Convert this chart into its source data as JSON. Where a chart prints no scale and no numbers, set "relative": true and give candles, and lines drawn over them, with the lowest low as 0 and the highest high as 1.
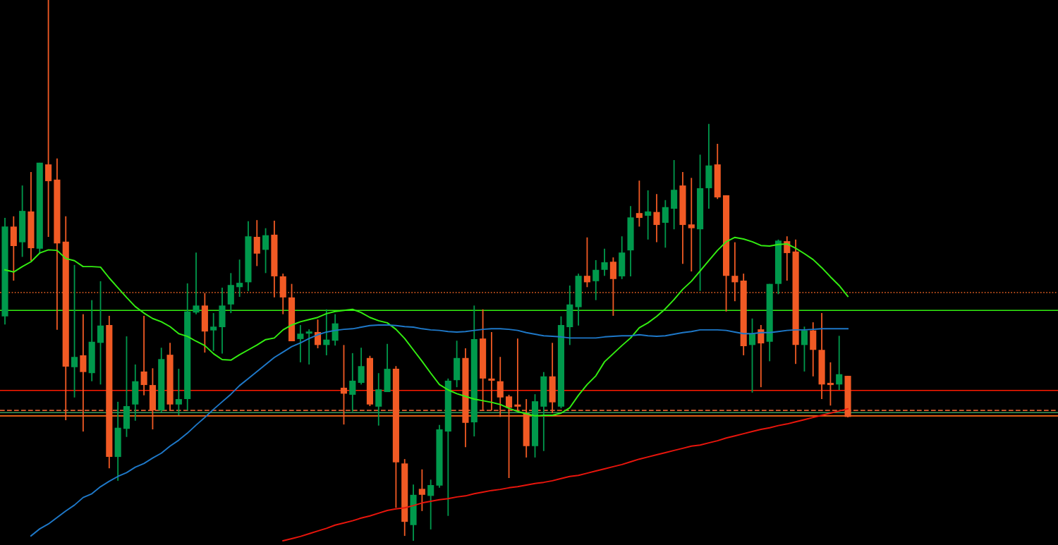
{
  "chart_data": {
    "type": "candlestick",
    "relative": true,
    "grid": false,
    "categories": [
      null,
      null,
      null,
      null,
      null,
      null,
      null,
      null,
      null,
      null,
      null,
      null,
      null,
      null,
      null,
      null,
      null,
      null,
      null,
      null,
      null,
      null,
      null,
      null,
      null,
      null,
      null,
      null,
      null,
      null,
      null,
      null,
      null,
      null,
      null,
      null,
      null,
      null,
      null,
      null,
      null,
      null,
      null,
      null,
      null,
      null,
      null,
      null,
      null,
      null,
      null,
      null,
      null,
      null,
      null,
      null,
      null,
      null,
      null,
      null,
      null,
      null,
      null,
      null,
      null,
      null,
      null,
      null,
      null,
      null,
      null,
      null,
      null,
      null,
      null,
      null,
      null,
      null,
      null,
      null,
      null,
      null,
      null,
      null,
      null,
      null,
      null,
      null,
      null,
      null,
      null,
      null,
      null,
      null,
      null,
      null,
      null,
      null
    ],
    "ohlc": [
      [
        0.415,
        0.597,
        0.4,
        0.581
      ],
      [
        0.581,
        0.6,
        0.481,
        0.545
      ],
      [
        0.552,
        0.657,
        0.525,
        0.61
      ],
      [
        0.609,
        0.682,
        0.518,
        0.541
      ],
      [
        0.54,
        0.699,
        0.531,
        0.699
      ],
      [
        0.696,
        1.0,
        0.562,
        0.665
      ],
      [
        0.668,
        0.707,
        0.39,
        0.55
      ],
      [
        0.553,
        0.6,
        0.223,
        0.322
      ],
      [
        0.321,
        0.51,
        0.265,
        0.34
      ],
      [
        0.343,
        0.419,
        0.202,
        0.312
      ],
      [
        0.31,
        0.445,
        0.295,
        0.368
      ],
      [
        0.366,
        0.48,
        0.289,
        0.398
      ],
      [
        0.399,
        0.416,
        0.134,
        0.155
      ],
      [
        0.155,
        0.257,
        0.111,
        0.209
      ],
      [
        0.207,
        0.378,
        0.192,
        0.249
      ],
      [
        0.252,
        0.326,
        0.222,
        0.295
      ],
      [
        0.313,
        0.416,
        0.269,
        0.288
      ],
      [
        0.288,
        0.319,
        0.206,
        0.241
      ],
      [
        0.241,
        0.357,
        0.237,
        0.336
      ],
      [
        0.344,
        0.366,
        0.241,
        0.252
      ],
      [
        0.252,
        0.318,
        0.232,
        0.262
      ],
      [
        0.262,
        0.476,
        0.241,
        0.424
      ],
      [
        0.422,
        0.533,
        0.419,
        0.435
      ],
      [
        0.435,
        0.458,
        0.348,
        0.387
      ],
      [
        0.389,
        0.421,
        0.351,
        0.396
      ],
      [
        0.395,
        0.468,
        0.346,
        0.435
      ],
      [
        0.437,
        0.495,
        0.421,
        0.473
      ],
      [
        0.469,
        0.52,
        0.451,
        0.477
      ],
      [
        0.478,
        0.591,
        0.462,
        0.563
      ],
      [
        0.562,
        0.593,
        0.508,
        0.531
      ],
      [
        0.538,
        0.578,
        0.495,
        0.565
      ],
      [
        0.566,
        0.592,
        0.45,
        0.489
      ],
      [
        0.489,
        0.494,
        0.419,
        0.45
      ],
      [
        0.45,
        0.475,
        0.369,
        0.369
      ],
      [
        0.373,
        0.399,
        0.33,
        0.383
      ],
      [
        0.383,
        0.391,
        0.326,
        0.387
      ],
      [
        0.386,
        0.409,
        0.356,
        0.362
      ],
      [
        0.362,
        0.428,
        0.343,
        0.372
      ],
      [
        0.37,
        0.419,
        0.361,
        0.402
      ],
      [
        0.283,
        0.362,
        0.215,
        0.272
      ],
      [
        0.27,
        0.347,
        0.239,
        0.296
      ],
      [
        0.292,
        0.357,
        0.289,
        0.323
      ],
      [
        0.338,
        0.342,
        0.249,
        0.252
      ],
      [
        0.248,
        0.31,
        0.213,
        0.28
      ],
      [
        0.275,
        0.364,
        0.275,
        0.318
      ],
      [
        0.318,
        0.323,
        0.061,
        0.145
      ],
      [
        0.143,
        0.151,
        0.009,
        0.035
      ],
      [
        0.029,
        0.104,
        0.0,
        0.085
      ],
      [
        0.096,
        0.132,
        0.055,
        0.085
      ],
      [
        0.083,
        0.113,
        0.021,
        0.103
      ],
      [
        0.102,
        0.214,
        0.098,
        0.206
      ],
      [
        0.202,
        0.3,
        0.046,
        0.296
      ],
      [
        0.297,
        0.37,
        0.284,
        0.338
      ],
      [
        0.338,
        0.356,
        0.173,
        0.218
      ],
      [
        0.219,
        0.435,
        0.193,
        0.373
      ],
      [
        0.374,
        0.428,
        0.241,
        0.3
      ],
      [
        0.3,
        0.386,
        0.241,
        0.296
      ],
      [
        0.295,
        0.34,
        0.229,
        0.265
      ],
      [
        0.267,
        0.27,
        0.116,
        0.246
      ],
      [
        0.252,
        0.374,
        0.239,
        0.248
      ],
      [
        0.236,
        0.262,
        0.154,
        0.175
      ],
      [
        0.175,
        0.271,
        0.154,
        0.258
      ],
      [
        0.248,
        0.312,
        0.166,
        0.304
      ],
      [
        0.304,
        0.366,
        0.236,
        0.256
      ],
      [
        0.248,
        0.415,
        0.245,
        0.399
      ],
      [
        0.395,
        0.472,
        0.362,
        0.437
      ],
      [
        0.432,
        0.494,
        0.398,
        0.49
      ],
      [
        0.49,
        0.561,
        0.469,
        0.478
      ],
      [
        0.48,
        0.519,
        0.445,
        0.501
      ],
      [
        0.501,
        0.54,
        0.49,
        0.515
      ],
      [
        0.516,
        0.524,
        0.416,
        0.484
      ],
      [
        0.489,
        0.563,
        0.484,
        0.533
      ],
      [
        0.537,
        0.619,
        0.489,
        0.598
      ],
      [
        0.606,
        0.666,
        0.581,
        0.597
      ],
      [
        0.601,
        0.648,
        0.557,
        0.609
      ],
      [
        0.608,
        0.641,
        0.552,
        0.584
      ],
      [
        0.588,
        0.63,
        0.542,
        0.617
      ],
      [
        0.614,
        0.704,
        0.576,
        0.649
      ],
      [
        0.657,
        0.682,
        0.512,
        0.584
      ],
      [
        0.585,
        0.671,
        0.498,
        0.578
      ],
      [
        0.576,
        0.714,
        0.462,
        0.652
      ],
      [
        0.652,
        0.771,
        0.614,
        0.694
      ],
      [
        0.696,
        0.734,
        0.632,
        0.635
      ],
      [
        0.639,
        0.639,
        0.424,
        0.49
      ],
      [
        0.49,
        0.552,
        0.443,
        0.478
      ],
      [
        0.481,
        0.494,
        0.343,
        0.36
      ],
      [
        0.362,
        0.411,
        0.274,
        0.382
      ],
      [
        0.391,
        0.399,
        0.284,
        0.365
      ],
      [
        0.368,
        0.475,
        0.332,
        0.475
      ],
      [
        0.475,
        0.557,
        0.456,
        0.555
      ],
      [
        0.554,
        0.563,
        0.481,
        0.532
      ],
      [
        0.535,
        0.557,
        0.327,
        0.362
      ],
      [
        0.362,
        0.396,
        0.313,
        0.389
      ],
      [
        0.389,
        0.404,
        0.304,
        0.353
      ],
      [
        0.353,
        0.421,
        0.262,
        0.289
      ],
      [
        0.292,
        0.33,
        0.25,
        0.288
      ],
      [
        0.289,
        0.379,
        0.279,
        0.308
      ],
      [
        0.305,
        0.305,
        0.228,
        0.229
      ]
    ],
    "colors": [
      "#00994c",
      "#f15a24",
      "#00994c",
      "#f15a24",
      "#00994c",
      "#f15a24",
      "#f15a24",
      "#f15a24",
      "#00994c",
      "#f15a24",
      "#00994c",
      "#00994c",
      "#f15a24",
      "#00994c",
      "#00994c",
      "#00994c",
      "#f15a24",
      "#f15a24",
      "#00994c",
      "#f15a24",
      "#00994c",
      "#00994c",
      "#00994c",
      "#f15a24",
      "#00994c",
      "#00994c",
      "#00994c",
      "#00994c",
      "#00994c",
      "#f15a24",
      "#00994c",
      "#f15a24",
      "#f15a24",
      "#f15a24",
      "#00994c",
      "#00994c",
      "#f15a24",
      "#00994c",
      "#00994c",
      "#f15a24",
      "#00994c",
      "#00994c",
      "#f15a24",
      "#00994c",
      "#00994c",
      "#f15a24",
      "#f15a24",
      "#00994c",
      "#f15a24",
      "#00994c",
      "#00994c",
      "#00994c",
      "#00994c",
      "#f15a24",
      "#00994c",
      "#f15a24",
      "#f15a24",
      "#f15a24",
      "#f15a24",
      "#f15a24",
      "#f15a24",
      "#00994c",
      "#00994c",
      "#f15a24",
      "#00994c",
      "#00994c",
      "#00994c",
      "#f15a24",
      "#00994c",
      "#00994c",
      "#f15a24",
      "#00994c",
      "#00994c",
      "#f15a24",
      "#00994c",
      "#f15a24",
      "#00994c",
      "#00994c",
      "#f15a24",
      "#f15a24",
      "#00994c",
      "#00994c",
      "#f15a24",
      "#f15a24",
      "#f15a24",
      "#f15a24",
      "#00994c",
      "#f15a24",
      "#00994c",
      "#00994c",
      "#f15a24",
      "#f15a24",
      "#00994c",
      "#f15a24",
      "#f15a24",
      "#f15a24",
      "#00994c",
      "#f15a24"
    ],
    "series": [
      {
        "type": "line",
        "color": "#33ee11",
        "values": [
          0.501,
          0.497,
          0.507,
          0.516,
          0.532,
          0.538,
          0.537,
          0.522,
          0.518,
          0.507,
          0.507,
          0.506,
          0.486,
          0.468,
          0.45,
          0.433,
          0.421,
          0.411,
          0.405,
          0.396,
          0.383,
          0.378,
          0.369,
          0.361,
          0.346,
          0.335,
          0.334,
          0.344,
          0.353,
          0.362,
          0.372,
          0.375,
          0.39,
          0.399,
          0.405,
          0.409,
          0.413,
          0.42,
          0.424,
          0.426,
          0.428,
          0.422,
          0.413,
          0.407,
          0.403,
          0.391,
          0.374,
          0.353,
          0.332,
          0.31,
          0.289,
          0.279,
          0.272,
          0.267,
          0.262,
          0.259,
          0.256,
          0.252,
          0.245,
          0.239,
          0.235,
          0.231,
          0.232,
          0.232,
          0.236,
          0.246,
          0.269,
          0.289,
          0.305,
          0.331,
          0.346,
          0.361,
          0.375,
          0.394,
          0.403,
          0.415,
          0.429,
          0.446,
          0.465,
          0.48,
          0.499,
          0.518,
          0.537,
          0.553,
          0.561,
          0.558,
          0.553,
          0.546,
          0.545,
          0.548,
          0.549,
          0.541,
          0.531,
          0.52,
          0.505,
          0.488,
          0.472,
          0.452
        ]
      },
      {
        "type": "line",
        "color": "#1e78c8",
        "values": [
          null,
          null,
          null,
          0.009,
          0.022,
          0.031,
          0.043,
          0.055,
          0.066,
          0.08,
          0.087,
          0.1,
          0.11,
          0.119,
          0.126,
          0.136,
          0.143,
          0.153,
          0.162,
          0.175,
          0.186,
          0.199,
          0.214,
          0.228,
          0.243,
          0.257,
          0.271,
          0.287,
          0.3,
          0.313,
          0.326,
          0.339,
          0.349,
          0.359,
          0.366,
          0.374,
          0.381,
          0.386,
          0.389,
          0.391,
          0.392,
          0.395,
          0.398,
          0.399,
          0.399,
          0.398,
          0.396,
          0.395,
          0.392,
          0.39,
          0.389,
          0.387,
          0.386,
          0.387,
          0.389,
          0.391,
          0.392,
          0.392,
          0.391,
          0.389,
          0.385,
          0.382,
          0.379,
          0.378,
          0.377,
          0.375,
          0.375,
          0.375,
          0.375,
          0.377,
          0.378,
          0.379,
          0.379,
          0.381,
          0.379,
          0.378,
          0.379,
          0.382,
          0.385,
          0.387,
          0.39,
          0.39,
          0.39,
          0.389,
          0.386,
          0.383,
          0.383,
          0.385,
          0.385,
          0.387,
          0.389,
          0.39,
          0.39,
          0.391,
          0.392,
          0.392,
          0.392,
          0.392
        ]
      },
      {
        "type": "line",
        "color": "#e8150c",
        "values": [
          null,
          null,
          null,
          null,
          null,
          null,
          null,
          null,
          null,
          null,
          null,
          null,
          null,
          null,
          null,
          null,
          null,
          null,
          null,
          null,
          null,
          null,
          null,
          null,
          null,
          null,
          null,
          null,
          null,
          null,
          null,
          null,
          0.0,
          0.004,
          0.008,
          0.013,
          0.018,
          0.023,
          0.029,
          0.033,
          0.037,
          0.042,
          0.046,
          0.051,
          0.056,
          0.059,
          0.061,
          0.065,
          0.07,
          0.073,
          0.076,
          0.078,
          0.081,
          0.083,
          0.087,
          0.09,
          0.093,
          0.095,
          0.098,
          0.1,
          0.103,
          0.106,
          0.108,
          0.111,
          0.115,
          0.119,
          0.121,
          0.125,
          0.129,
          0.133,
          0.137,
          0.141,
          0.146,
          0.151,
          0.155,
          0.159,
          0.163,
          0.167,
          0.171,
          0.175,
          0.177,
          0.181,
          0.185,
          0.19,
          0.194,
          0.198,
          0.202,
          0.206,
          0.209,
          0.213,
          0.216,
          0.22,
          0.224,
          0.228,
          0.232,
          0.236,
          0.24,
          0.244
        ]
      }
    ],
    "ref_lines": [
      {
        "axis": "y",
        "value": 0.459,
        "color": "#c8541e",
        "line_style": "dotted"
      },
      {
        "axis": "y",
        "value": 0.426,
        "color": "#33ee11",
        "line_style": "solid"
      },
      {
        "axis": "y",
        "value": 0.278,
        "color": "#ff1a00",
        "line_style": "solid"
      },
      {
        "axis": "y",
        "value": 0.241,
        "color": "#e06030",
        "line_style": "dashed"
      },
      {
        "axis": "y",
        "value": 0.237,
        "color": "#3a9a5a",
        "line_style": "solid"
      },
      {
        "axis": "y",
        "value": 0.231,
        "color": "#ff6a1a",
        "line_style": "solid"
      }
    ]
  }
}
